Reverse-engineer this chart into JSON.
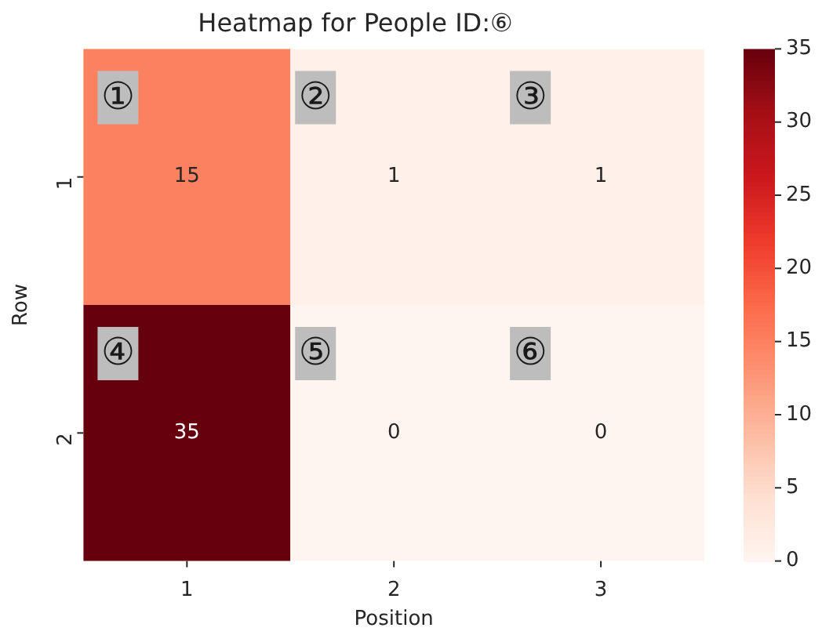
{
  "chart_data": {
    "type": "heatmap",
    "title": "Heatmap for People ID:⑥",
    "xlabel": "Position",
    "ylabel": "Row",
    "categories": [
      "1",
      "2",
      "3"
    ],
    "y_categories": [
      "1",
      "2"
    ],
    "cells": [
      [
        15,
        1,
        1
      ],
      [
        35,
        0,
        0
      ]
    ],
    "clim": [
      0,
      35
    ],
    "cticks": [
      0,
      5,
      10,
      15,
      20,
      25,
      30,
      35
    ],
    "data_labels": true,
    "annotations": [
      "①",
      "②",
      "③",
      "④",
      "⑤",
      "⑥"
    ]
  }
}
